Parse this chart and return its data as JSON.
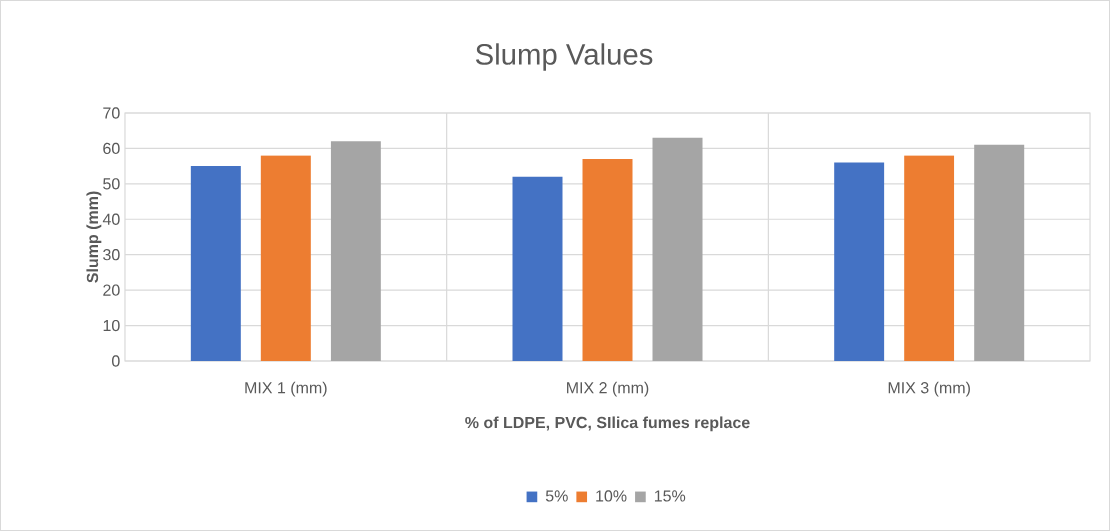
{
  "chart_data": {
    "type": "bar",
    "title": "Slump Values",
    "xlabel": "% of LDPE, PVC, SIlica fumes replace",
    "ylabel": "Slump (mm)",
    "categories": [
      "MIX 1 (mm)",
      "MIX 2 (mm)",
      "MIX 3 (mm)"
    ],
    "series": [
      {
        "name": "5%",
        "color": "#4472c4",
        "values": [
          55,
          52,
          56
        ]
      },
      {
        "name": "10%",
        "color": "#ed7d31",
        "values": [
          58,
          57,
          58
        ]
      },
      {
        "name": "15%",
        "color": "#a5a5a5",
        "values": [
          62,
          63,
          61
        ]
      }
    ],
    "ylim": [
      0,
      70
    ],
    "yticks": [
      0,
      10,
      20,
      30,
      40,
      50,
      60,
      70
    ],
    "grid": true,
    "legend": "bottom"
  }
}
